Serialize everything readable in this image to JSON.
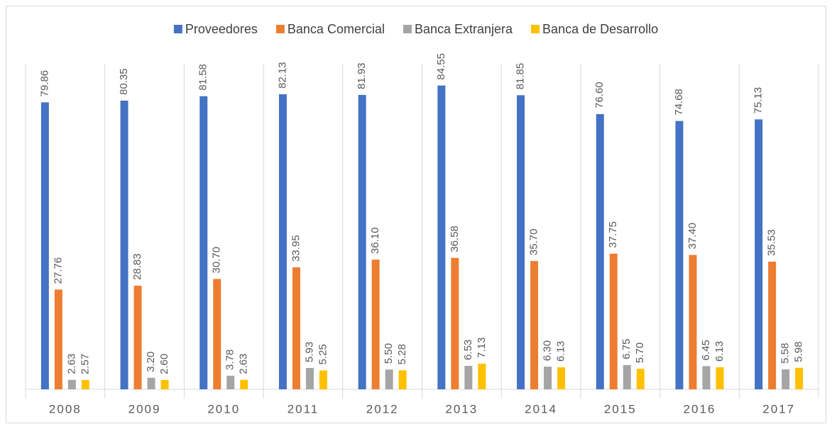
{
  "chart_data": {
    "type": "bar",
    "categories": [
      "2008",
      "2009",
      "2010",
      "2011",
      "2012",
      "2013",
      "2014",
      "2015",
      "2016",
      "2017"
    ],
    "series": [
      {
        "name": "Proveedores",
        "color": "#4472c4",
        "values": [
          79.86,
          80.35,
          81.58,
          82.13,
          81.93,
          84.55,
          81.85,
          76.6,
          74.68,
          75.13
        ],
        "value_labels": [
          "79.86",
          "80.35",
          "81.58",
          "82.13",
          "81.93",
          "84.55",
          "81.85",
          "76.60",
          "74.68",
          "75.13"
        ]
      },
      {
        "name": "Banca Comercial",
        "color": "#ed7d31",
        "values": [
          27.76,
          28.83,
          30.7,
          33.95,
          36.1,
          36.58,
          35.7,
          37.75,
          37.4,
          35.53
        ],
        "value_labels": [
          "27.76",
          "28.83",
          "30.70",
          "33.95",
          "36.10",
          "36.58",
          "35.70",
          "37.75",
          "37.40",
          "35.53"
        ]
      },
      {
        "name": "Banca Extranjera",
        "color": "#a5a5a5",
        "values": [
          2.63,
          3.2,
          3.78,
          5.93,
          5.5,
          6.53,
          6.3,
          6.75,
          6.45,
          5.58
        ],
        "value_labels": [
          "2.63",
          "3.20",
          "3.78",
          "5.93",
          "5.50",
          "6.53",
          "6.30",
          "6.75",
          "6.45",
          "5.58"
        ]
      },
      {
        "name": "Banca de Desarrollo",
        "color": "#ffc000",
        "values": [
          2.57,
          2.6,
          2.63,
          5.25,
          5.28,
          7.13,
          6.13,
          5.7,
          6.13,
          5.98
        ],
        "value_labels": [
          "2.57",
          "2.60",
          "2.63",
          "5.25",
          "5.28",
          "7.13",
          "6.13",
          "5.70",
          "6.13",
          "5.98"
        ]
      }
    ],
    "ylim": [
      0,
      90
    ],
    "legend": "top"
  }
}
